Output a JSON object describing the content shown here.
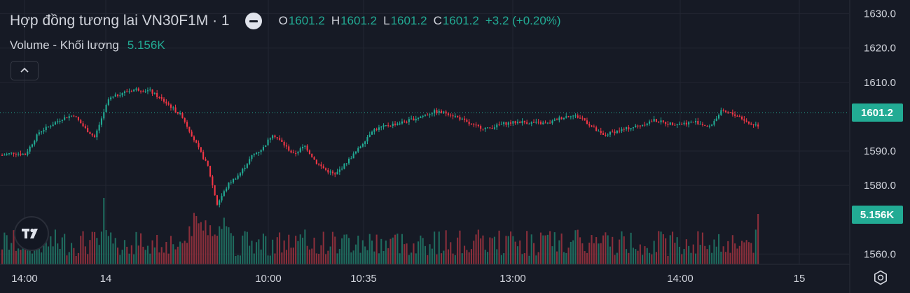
{
  "legend": {
    "symbol": "Hợp đồng tương lai VN30F1M · 1",
    "ohlc": [
      {
        "key": "O",
        "value": "1601.2"
      },
      {
        "key": "H",
        "value": "1601.2"
      },
      {
        "key": "L",
        "value": "1601.2"
      },
      {
        "key": "C",
        "value": "1601.2"
      }
    ],
    "change": "+3.2 (+0.20%)",
    "volume_label": "Volume - Khối lượng",
    "volume_value": "5.156K"
  },
  "colors": {
    "background": "#161a25",
    "up": "#22ab94",
    "down": "#f23645",
    "volume_up": "#1f6b5e",
    "volume_down": "#8a2f3b",
    "grid": "#232632",
    "text": "#d1d4dc",
    "label_bg": "#22ab94"
  },
  "icons": [
    "hide-legend-icon",
    "chevron-up-icon",
    "tradingview-logo-icon",
    "gear-icon"
  ],
  "chart_data": {
    "type": "candlestick",
    "interval": "1",
    "price_axis": {
      "ticks": [
        "1630.0",
        "1620.0",
        "1610.0",
        "1590.0",
        "1580.0",
        "1560.0"
      ],
      "ylim": [
        1557,
        1634
      ]
    },
    "time_axis": {
      "ticks": [
        "14:00",
        "14",
        "10:00",
        "10:35",
        "13:00",
        "14:00",
        "15"
      ]
    },
    "last_price_label": "1601.2",
    "volume_label": "5.156K",
    "grid": true,
    "price_path": [
      [
        0,
        1588.8
      ],
      [
        5,
        1589.5
      ],
      [
        10,
        1589.0
      ],
      [
        16,
        1595.5
      ],
      [
        21,
        1597.5
      ],
      [
        26,
        1599.5
      ],
      [
        31,
        1600.5
      ],
      [
        36,
        1596.5
      ],
      [
        40,
        1594.0
      ],
      [
        46,
        1605.0
      ],
      [
        52,
        1607.0
      ],
      [
        58,
        1608.0
      ],
      [
        64,
        1607.5
      ],
      [
        72,
        1603.5
      ],
      [
        78,
        1600.0
      ],
      [
        84,
        1592.0
      ],
      [
        89,
        1585.5
      ],
      [
        93,
        1574.5
      ],
      [
        98,
        1580.5
      ],
      [
        103,
        1583.5
      ],
      [
        108,
        1588.5
      ],
      [
        113,
        1591.0
      ],
      [
        117,
        1595.0
      ],
      [
        121,
        1592.5
      ],
      [
        126,
        1589.0
      ],
      [
        131,
        1591.5
      ],
      [
        136,
        1586.5
      ],
      [
        140,
        1584.5
      ],
      [
        144,
        1583.0
      ],
      [
        148,
        1586.0
      ],
      [
        154,
        1590.5
      ],
      [
        160,
        1596.0
      ],
      [
        167,
        1597.5
      ],
      [
        174,
        1598.5
      ],
      [
        181,
        1600.0
      ],
      [
        187,
        1601.5
      ],
      [
        193,
        1601.0
      ],
      [
        198,
        1599.5
      ],
      [
        203,
        1597.5
      ],
      [
        210,
        1596.5
      ],
      [
        217,
        1598.0
      ],
      [
        224,
        1598.5
      ],
      [
        230,
        1598.2
      ],
      [
        236,
        1598.0
      ],
      [
        241,
        1599.5
      ],
      [
        246,
        1600.5
      ],
      [
        251,
        1599.5
      ],
      [
        256,
        1596.5
      ],
      [
        260,
        1594.5
      ],
      [
        264,
        1595.5
      ],
      [
        270,
        1596.5
      ],
      [
        276,
        1597.5
      ],
      [
        282,
        1599.0
      ],
      [
        288,
        1598.0
      ],
      [
        294,
        1598.0
      ],
      [
        300,
        1598.5
      ],
      [
        306,
        1597.0
      ],
      [
        311,
        1601.5
      ],
      [
        315,
        1601.0
      ],
      [
        319,
        1600.0
      ],
      [
        323,
        1598.0
      ],
      [
        327,
        1597.5
      ]
    ]
  }
}
